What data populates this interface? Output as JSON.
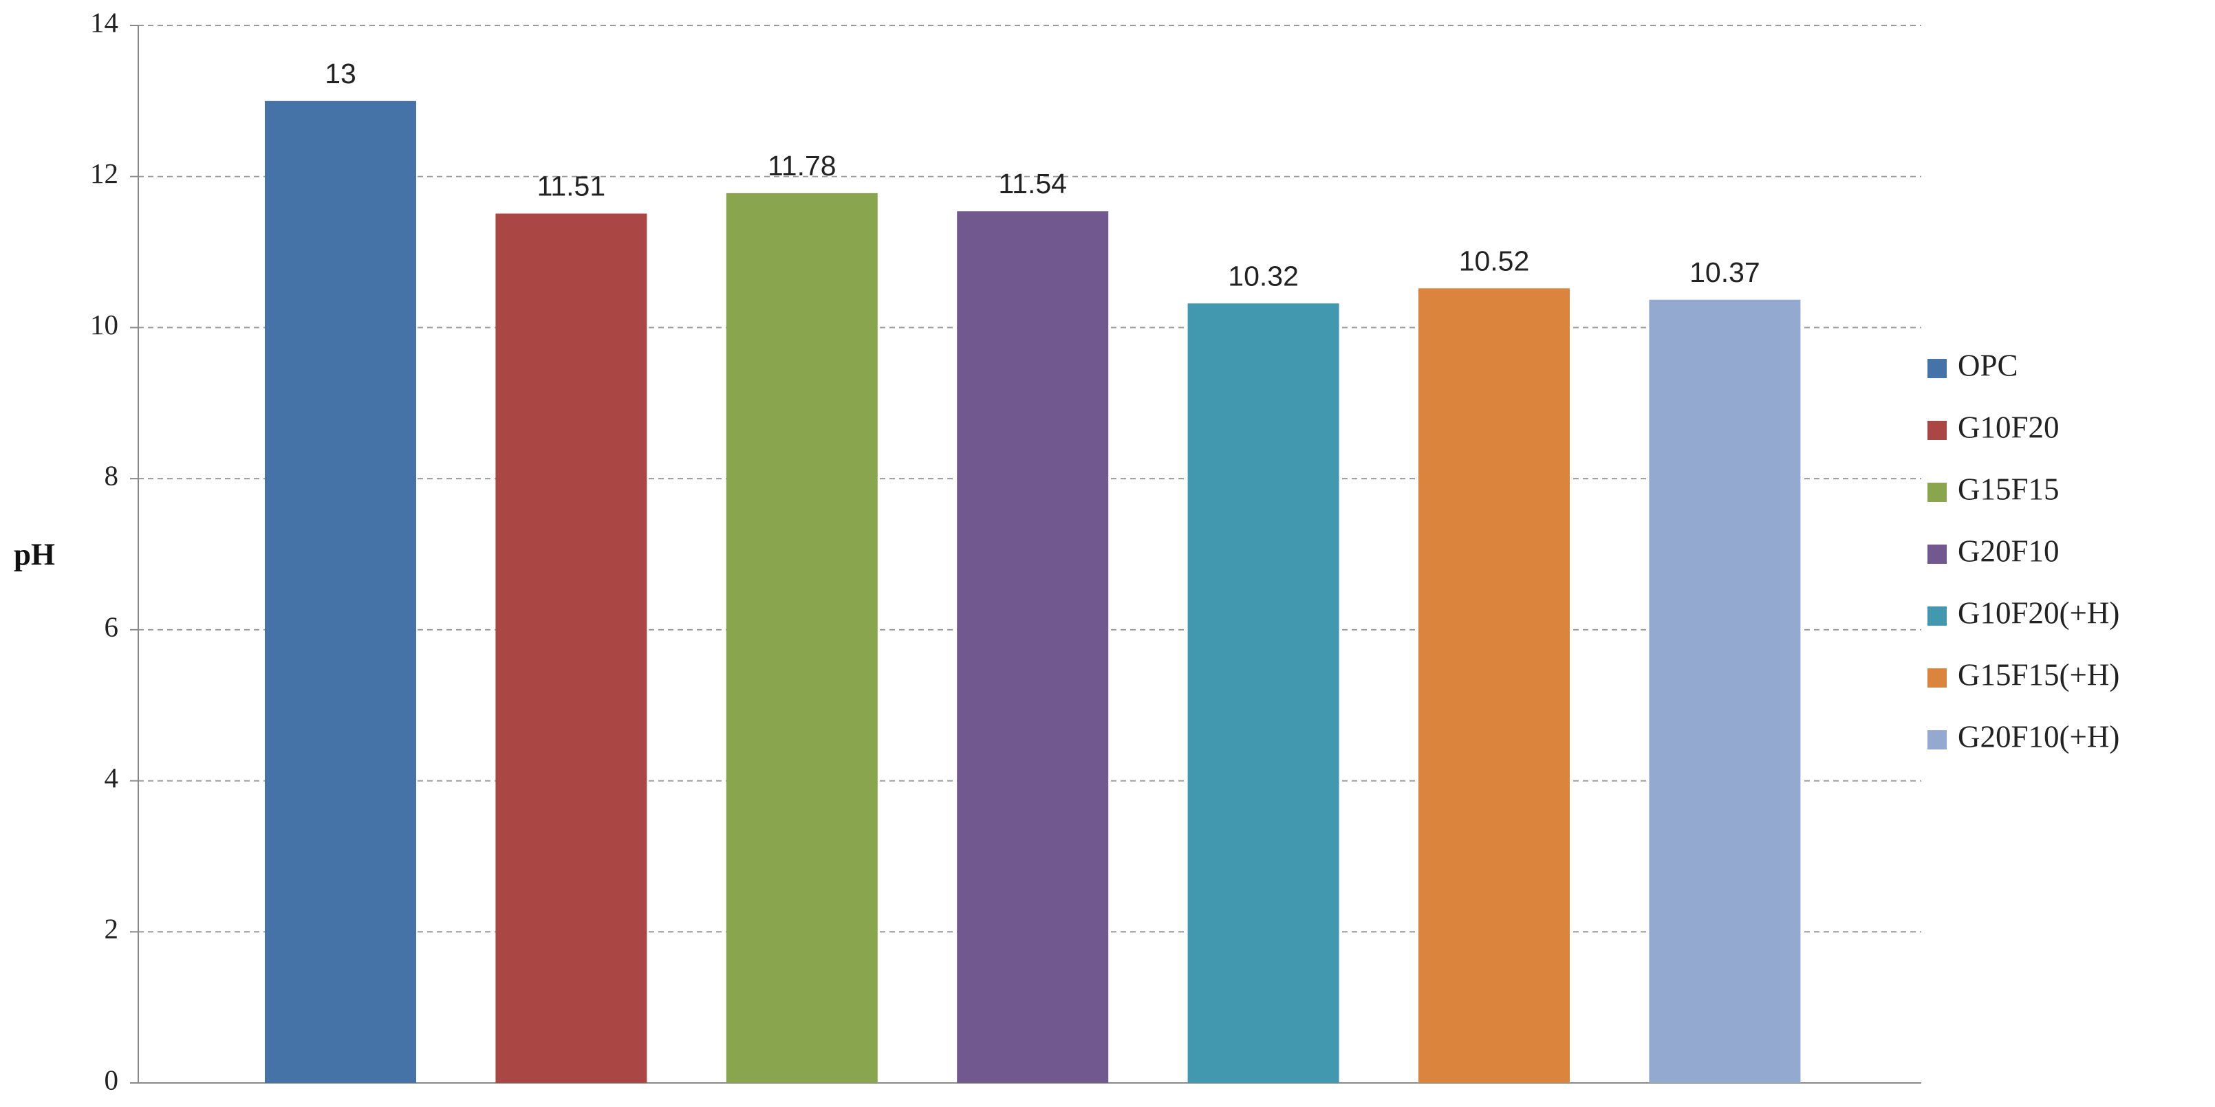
{
  "chart_data": {
    "type": "bar",
    "y_label": "pH",
    "series": [
      {
        "name": "OPC",
        "color": "#4572a7",
        "values": [
          13
        ]
      },
      {
        "name": "G10F20",
        "color": "#aa4643",
        "values": [
          11.51
        ]
      },
      {
        "name": "G15F15",
        "color": "#89a54e",
        "values": [
          11.78
        ]
      },
      {
        "name": "G20F10",
        "color": "#71588f",
        "values": [
          11.54
        ]
      },
      {
        "name": "G10F20(+H)",
        "color": "#4198af",
        "values": [
          10.32
        ]
      },
      {
        "name": "G15F15(+H)",
        "color": "#db843d",
        "values": [
          10.52
        ]
      },
      {
        "name": "G20F10(+H)",
        "color": "#93a9cf",
        "values": [
          10.37
        ]
      }
    ],
    "ylim": [
      0,
      14
    ],
    "yticks": [
      0,
      2,
      4,
      6,
      8,
      10,
      12,
      14
    ],
    "grid": true,
    "legend": "right"
  }
}
